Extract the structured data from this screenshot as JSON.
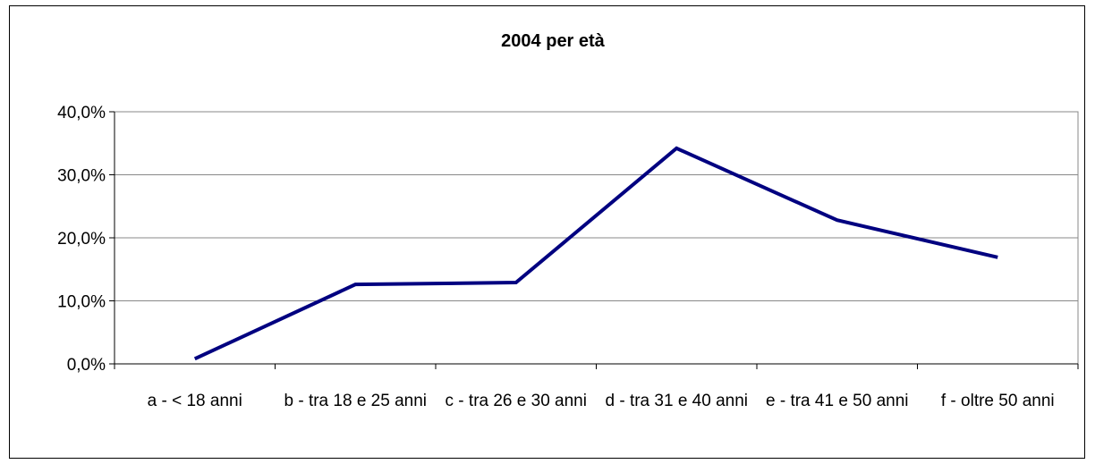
{
  "chart_data": {
    "type": "line",
    "title": "2004 per età",
    "categories": [
      "a - < 18 anni",
      "b - tra 18 e 25 anni",
      "c - tra 26 e 30 anni",
      "d - tra 31 e 40 anni",
      "e - tra 41 e 50 anni",
      "f - oltre 50 anni"
    ],
    "series": [
      {
        "name": "2004",
        "color": "#000080",
        "values": [
          0.8,
          12.6,
          12.9,
          34.2,
          22.8,
          16.9
        ]
      }
    ],
    "ylim": [
      0,
      40
    ],
    "yticks": [
      {
        "value": 0,
        "label": "0,0%"
      },
      {
        "value": 10,
        "label": "10,0%"
      },
      {
        "value": 20,
        "label": "20,0%"
      },
      {
        "value": 30,
        "label": "30,0%"
      },
      {
        "value": 40,
        "label": "40,0%"
      }
    ],
    "grid": true
  }
}
